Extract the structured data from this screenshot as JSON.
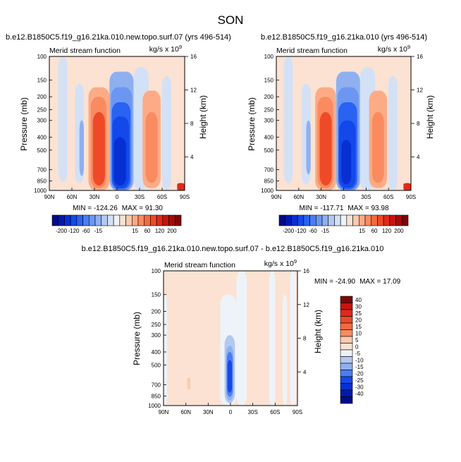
{
  "figure": {
    "title": "SON"
  },
  "colors": {
    "panel_background": "#fbe2d2",
    "frame": "#000000"
  },
  "chart_data": [
    {
      "id": "panel-a",
      "type": "heatmap",
      "title": "b.e12.B1850C5.f19_g16.21ka.010.new.topo.surf.07 (yrs 496-514)",
      "subtitle_left": "Merid stream function",
      "units_label": "kg/s x 10",
      "units_exponent": "9",
      "ylabel": "Pressure (mb)",
      "ylabel_right": "Height (km)",
      "x_tick_labels": [
        "90N",
        "60N",
        "30N",
        "0",
        "30S",
        "60S",
        "90S"
      ],
      "x_ticks_lat": [
        90,
        60,
        30,
        0,
        -30,
        -60,
        -90
      ],
      "y_ticks_mb": [
        100,
        150,
        200,
        250,
        300,
        400,
        500,
        700,
        850,
        1000
      ],
      "y_right_ticks_km": [
        4,
        8,
        12,
        16
      ],
      "stats": {
        "min_label": "MIN = ",
        "min": "-124.26",
        "max_label": "MAX = ",
        "max": "91.30"
      },
      "value_range": [
        -124.26,
        91.3
      ],
      "cells": [
        {
          "lat1": 90,
          "lat2": 60,
          "p1": 100,
          "p2": 1000,
          "v": 5
        },
        {
          "lat1": 78,
          "lat2": 66,
          "p1": 100,
          "p2": 860,
          "v": -5
        },
        {
          "lat1": 56,
          "lat2": 44,
          "p1": 160,
          "p2": 880,
          "v": -5
        },
        {
          "lat1": 50,
          "lat2": 44,
          "p1": 300,
          "p2": 780,
          "v": -15
        },
        {
          "lat1": 44,
          "lat2": 38,
          "p1": 180,
          "p2": 900,
          "v": 5
        },
        {
          "lat1": 38,
          "lat2": 10,
          "p1": 170,
          "p2": 1000,
          "v": 15
        },
        {
          "lat1": 35,
          "lat2": 14,
          "p1": 200,
          "p2": 960,
          "v": 30
        },
        {
          "lat1": 32,
          "lat2": 16,
          "p1": 260,
          "p2": 920,
          "v": 60
        },
        {
          "lat1": 29,
          "lat2": 20,
          "p1": 320,
          "p2": 880,
          "v": 80
        },
        {
          "lat1": 10,
          "lat2": -22,
          "p1": 130,
          "p2": 1000,
          "v": -15
        },
        {
          "lat1": 8,
          "lat2": -20,
          "p1": 170,
          "p2": 1000,
          "v": -30
        },
        {
          "lat1": 7,
          "lat2": -18,
          "p1": 220,
          "p2": 980,
          "v": -60
        },
        {
          "lat1": 6,
          "lat2": -16,
          "p1": 280,
          "p2": 960,
          "v": -90
        },
        {
          "lat1": 4,
          "lat2": -12,
          "p1": 400,
          "p2": 920,
          "v": -120
        },
        {
          "lat1": -22,
          "lat2": -42,
          "p1": 120,
          "p2": 1000,
          "v": -5
        },
        {
          "lat1": -34,
          "lat2": -58,
          "p1": 180,
          "p2": 960,
          "v": 15
        },
        {
          "lat1": -38,
          "lat2": -54,
          "p1": 260,
          "p2": 880,
          "v": 30
        },
        {
          "lat1": -60,
          "lat2": -72,
          "p1": 140,
          "p2": 1000,
          "v": -5
        },
        {
          "lat1": -80,
          "lat2": -90,
          "p1": 880,
          "p2": 1000,
          "v": 100
        }
      ]
    },
    {
      "id": "panel-b",
      "type": "heatmap",
      "title": "b.e12.B1850C5.f19_g16.21ka.010 (yrs 496-514)",
      "subtitle_left": "Merid stream function",
      "units_label": "kg/s x 10",
      "units_exponent": "9",
      "ylabel": "Pressure (mb)",
      "ylabel_right": "Height (km)",
      "x_tick_labels": [
        "90N",
        "60N",
        "30N",
        "0",
        "30S",
        "60S",
        "90S"
      ],
      "x_ticks_lat": [
        90,
        60,
        30,
        0,
        -30,
        -60,
        -90
      ],
      "y_ticks_mb": [
        100,
        150,
        200,
        250,
        300,
        400,
        500,
        700,
        850,
        1000
      ],
      "y_right_ticks_km": [
        4,
        8,
        12,
        16
      ],
      "stats": {
        "min_label": "MIN = ",
        "min": "-117.71",
        "max_label": "MAX = ",
        "max": "93.98"
      },
      "value_range": [
        -117.71,
        93.98
      ],
      "cells": [
        {
          "lat1": 90,
          "lat2": 60,
          "p1": 100,
          "p2": 1000,
          "v": 5
        },
        {
          "lat1": 80,
          "lat2": 68,
          "p1": 100,
          "p2": 880,
          "v": -5
        },
        {
          "lat1": 56,
          "lat2": 44,
          "p1": 160,
          "p2": 900,
          "v": -5
        },
        {
          "lat1": 50,
          "lat2": 44,
          "p1": 300,
          "p2": 760,
          "v": -15
        },
        {
          "lat1": 44,
          "lat2": 38,
          "p1": 180,
          "p2": 900,
          "v": 5
        },
        {
          "lat1": 38,
          "lat2": 10,
          "p1": 170,
          "p2": 1000,
          "v": 15
        },
        {
          "lat1": 35,
          "lat2": 14,
          "p1": 200,
          "p2": 960,
          "v": 30
        },
        {
          "lat1": 32,
          "lat2": 16,
          "p1": 260,
          "p2": 920,
          "v": 60
        },
        {
          "lat1": 29,
          "lat2": 20,
          "p1": 320,
          "p2": 880,
          "v": 80
        },
        {
          "lat1": 10,
          "lat2": -22,
          "p1": 130,
          "p2": 1000,
          "v": -15
        },
        {
          "lat1": 8,
          "lat2": -20,
          "p1": 170,
          "p2": 1000,
          "v": -30
        },
        {
          "lat1": 7,
          "lat2": -18,
          "p1": 220,
          "p2": 980,
          "v": -60
        },
        {
          "lat1": 6,
          "lat2": -16,
          "p1": 300,
          "p2": 960,
          "v": -90
        },
        {
          "lat1": 3,
          "lat2": -10,
          "p1": 420,
          "p2": 900,
          "v": -120
        },
        {
          "lat1": -22,
          "lat2": -42,
          "p1": 120,
          "p2": 1000,
          "v": -5
        },
        {
          "lat1": -34,
          "lat2": -58,
          "p1": 180,
          "p2": 960,
          "v": 15
        },
        {
          "lat1": -38,
          "lat2": -54,
          "p1": 260,
          "p2": 880,
          "v": 30
        },
        {
          "lat1": -60,
          "lat2": -72,
          "p1": 140,
          "p2": 1000,
          "v": -5
        },
        {
          "lat1": -80,
          "lat2": -90,
          "p1": 880,
          "p2": 1000,
          "v": 100
        }
      ]
    },
    {
      "id": "panel-diff",
      "type": "heatmap",
      "title": "b.e12.B1850C5.f19_g16.21ka.010.new.topo.surf.07 - b.e12.B1850C5.f19_g16.21ka.010",
      "subtitle_left": "Merid stream function",
      "units_label": "kg/s x 10",
      "units_exponent": "9",
      "ylabel": "Pressure (mb)",
      "ylabel_right": "Height (km)",
      "x_tick_labels": [
        "90N",
        "60N",
        "30N",
        "0",
        "30S",
        "60S",
        "90S"
      ],
      "x_ticks_lat": [
        90,
        60,
        30,
        0,
        -30,
        -60,
        -90
      ],
      "y_ticks_mb": [
        100,
        150,
        200,
        250,
        300,
        400,
        500,
        700,
        850,
        1000
      ],
      "y_right_ticks_km": [
        4,
        8,
        12,
        16
      ],
      "stats": {
        "min_label": "MIN = ",
        "min": "-24.90",
        "max_label": "MAX = ",
        "max": "17.09"
      },
      "value_range": [
        -24.9,
        17.09
      ],
      "cells": [
        {
          "lat1": 90,
          "lat2": 85,
          "p1": 150,
          "p2": 1000,
          "v": -3
        },
        {
          "lat1": 58,
          "lat2": 54,
          "p1": 620,
          "p2": 760,
          "v": 6
        },
        {
          "lat1": 14,
          "lat2": -8,
          "p1": 150,
          "p2": 1000,
          "v": -3
        },
        {
          "lat1": 8,
          "lat2": -6,
          "p1": 300,
          "p2": 960,
          "v": -8
        },
        {
          "lat1": 6,
          "lat2": -4,
          "p1": 360,
          "p2": 920,
          "v": -12
        },
        {
          "lat1": 5,
          "lat2": -3,
          "p1": 400,
          "p2": 860,
          "v": -18
        },
        {
          "lat1": 4,
          "lat2": -2,
          "p1": 460,
          "p2": 800,
          "v": -22
        },
        {
          "lat1": -8,
          "lat2": -22,
          "p1": 100,
          "p2": 1000,
          "v": -3
        },
        {
          "lat1": -22,
          "lat2": -30,
          "p1": 100,
          "p2": 1000,
          "v": 3
        },
        {
          "lat1": -52,
          "lat2": -60,
          "p1": 100,
          "p2": 1000,
          "v": -3
        },
        {
          "lat1": -70,
          "lat2": -76,
          "p1": 150,
          "p2": 1000,
          "v": -3
        },
        {
          "lat1": -80,
          "lat2": -88,
          "p1": 100,
          "p2": 1000,
          "v": -3
        }
      ]
    }
  ],
  "colorbar_main": {
    "labels": [
      "-200",
      "-120",
      "-60",
      "-15",
      "15",
      "60",
      "120",
      "200"
    ],
    "colors": [
      "#000c8a",
      "#0019b0",
      "#0630d3",
      "#1448ea",
      "#2a63f2",
      "#4a7df4",
      "#6b97f2",
      "#8eb0f0",
      "#b3c9f0",
      "#d3e1f6",
      "#eef3f9",
      "#fbe2d2",
      "#fcc9ad",
      "#fcab86",
      "#fa8b60",
      "#f6693f",
      "#ee4a27",
      "#e12918",
      "#c8130f",
      "#a40b08",
      "#7e0604"
    ],
    "bounds": [
      -200,
      -160,
      -120,
      -90,
      -60,
      -40,
      -30,
      -15,
      -10,
      -5,
      0,
      5,
      10,
      15,
      30,
      40,
      60,
      90,
      120,
      160,
      200
    ]
  },
  "colorbar_diff": {
    "labels": [
      "40",
      "30",
      "25",
      "20",
      "15",
      "10",
      "5",
      "0",
      "-5",
      "-10",
      "-15",
      "-20",
      "-25",
      "-30",
      "-40"
    ],
    "colors": [
      "#7e0604",
      "#c8130f",
      "#e12918",
      "#ee4a27",
      "#f6693f",
      "#fa8b60",
      "#fcc9ad",
      "#fbe2d2",
      "#eef3f9",
      "#b3c9f0",
      "#8eb0f0",
      "#4a7df4",
      "#1448ea",
      "#0630d3",
      "#0019b0",
      "#000c8a"
    ],
    "bounds": [
      40,
      30,
      25,
      20,
      15,
      10,
      5,
      0,
      -5,
      -10,
      -15,
      -20,
      -25,
      -30,
      -40
    ]
  }
}
